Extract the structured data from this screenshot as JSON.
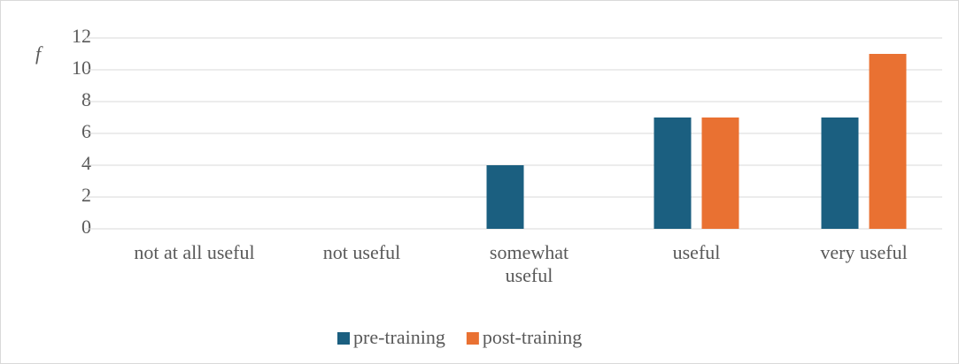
{
  "chart_data": {
    "type": "bar",
    "y_label": "f",
    "categories": [
      "not at all useful",
      "not useful",
      "somewhat useful",
      "useful",
      "very useful"
    ],
    "series": [
      {
        "name": "pre-training",
        "color": "#1b5f80",
        "values": [
          0,
          0,
          4,
          7,
          7
        ]
      },
      {
        "name": "post-training",
        "color": "#e97132",
        "values": [
          0,
          0,
          0,
          7,
          11
        ]
      }
    ],
    "ylim": [
      0,
      12
    ],
    "yticks": [
      0,
      2,
      4,
      6,
      8,
      10,
      12
    ],
    "grid": true,
    "legend": "bottom"
  }
}
